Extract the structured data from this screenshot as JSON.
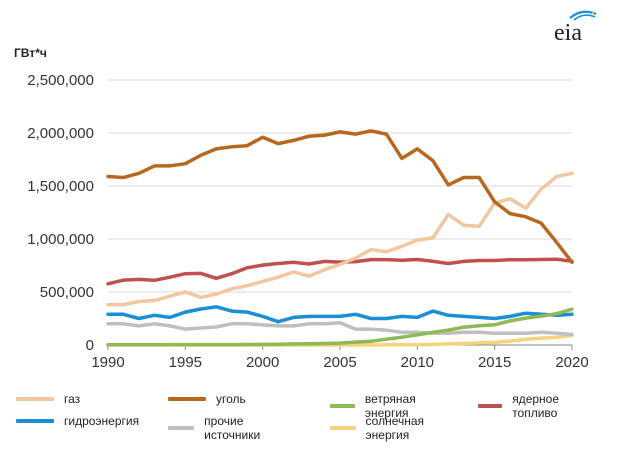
{
  "logo_text": "eia",
  "chart_data": {
    "type": "line",
    "unit_label": "ГВт*ч",
    "x": [
      1990,
      1991,
      1992,
      1993,
      1994,
      1995,
      1996,
      1997,
      1998,
      1999,
      2000,
      2001,
      2002,
      2003,
      2004,
      2005,
      2006,
      2007,
      2008,
      2009,
      2010,
      2011,
      2012,
      2013,
      2014,
      2015,
      2016,
      2017,
      2018,
      2019,
      2020
    ],
    "xticks": [
      1990,
      1995,
      2000,
      2005,
      2010,
      2015,
      2020
    ],
    "yticks": [
      0,
      500000,
      1000000,
      1500000,
      2000000,
      2500000
    ],
    "ytick_labels": [
      "0",
      "500,000",
      "1,000,000",
      "1,500,000",
      "2,000,000",
      "2,500,000"
    ],
    "ylim": [
      0,
      2500000
    ],
    "xlim": [
      1990,
      2020
    ],
    "grid": "horizontal",
    "legend_position": "bottom",
    "series": [
      {
        "name": "газ",
        "color": "#f2c7a0",
        "values": [
          380000,
          380000,
          410000,
          420000,
          460000,
          500000,
          450000,
          480000,
          530000,
          560000,
          600000,
          640000,
          690000,
          650000,
          710000,
          760000,
          820000,
          900000,
          880000,
          930000,
          990000,
          1010000,
          1230000,
          1130000,
          1120000,
          1340000,
          1380000,
          1290000,
          1470000,
          1590000,
          1620000
        ]
      },
      {
        "name": "уголь",
        "color": "#b8681e",
        "values": [
          1590000,
          1580000,
          1620000,
          1690000,
          1690000,
          1710000,
          1790000,
          1850000,
          1870000,
          1880000,
          1960000,
          1900000,
          1930000,
          1970000,
          1980000,
          2010000,
          1990000,
          2020000,
          1990000,
          1760000,
          1850000,
          1740000,
          1510000,
          1580000,
          1580000,
          1350000,
          1240000,
          1210000,
          1150000,
          970000,
          780000
        ]
      },
      {
        "name": "ветряная энергия",
        "color": "#8db956",
        "values": [
          3000,
          3000,
          3000,
          3000,
          4000,
          4000,
          4000,
          4000,
          4000,
          5000,
          6000,
          7000,
          10000,
          11000,
          14000,
          18000,
          27000,
          35000,
          55000,
          74000,
          95000,
          120000,
          141000,
          168000,
          182000,
          191000,
          227000,
          254000,
          273000,
          295000,
          338000
        ]
      },
      {
        "name": "ядерное топливо",
        "color": "#c0504d",
        "values": [
          577000,
          612000,
          619000,
          610000,
          640000,
          673000,
          675000,
          629000,
          673000,
          728000,
          754000,
          769000,
          780000,
          764000,
          789000,
          782000,
          787000,
          806000,
          806000,
          799000,
          807000,
          790000,
          769000,
          789000,
          797000,
          797000,
          805000,
          805000,
          807000,
          809000,
          790000
        ]
      },
      {
        "name": "гидроэнергия",
        "color": "#1a8fd6",
        "values": [
          290000,
          290000,
          250000,
          280000,
          260000,
          310000,
          340000,
          360000,
          320000,
          310000,
          270000,
          220000,
          260000,
          270000,
          270000,
          270000,
          290000,
          250000,
          250000,
          270000,
          260000,
          320000,
          280000,
          270000,
          260000,
          250000,
          270000,
          300000,
          290000,
          280000,
          290000
        ]
      },
      {
        "name": "прочие источники",
        "color": "#bfbfbf",
        "values": [
          200000,
          200000,
          180000,
          200000,
          180000,
          150000,
          160000,
          170000,
          200000,
          200000,
          190000,
          180000,
          180000,
          200000,
          200000,
          210000,
          150000,
          150000,
          140000,
          120000,
          120000,
          110000,
          110000,
          120000,
          120000,
          110000,
          110000,
          110000,
          120000,
          110000,
          100000
        ]
      },
      {
        "name": "солнечная энергия",
        "color": "#f5d37a",
        "values": [
          0,
          0,
          0,
          0,
          0,
          0,
          0,
          0,
          0,
          0,
          0,
          0,
          0,
          0,
          0,
          0,
          0,
          1000,
          2000,
          2000,
          3000,
          5000,
          10000,
          14000,
          20000,
          25000,
          37000,
          54000,
          65000,
          72000,
          90000
        ]
      }
    ],
    "legend_order": [
      0,
      1,
      2,
      3,
      4,
      5,
      6
    ]
  }
}
